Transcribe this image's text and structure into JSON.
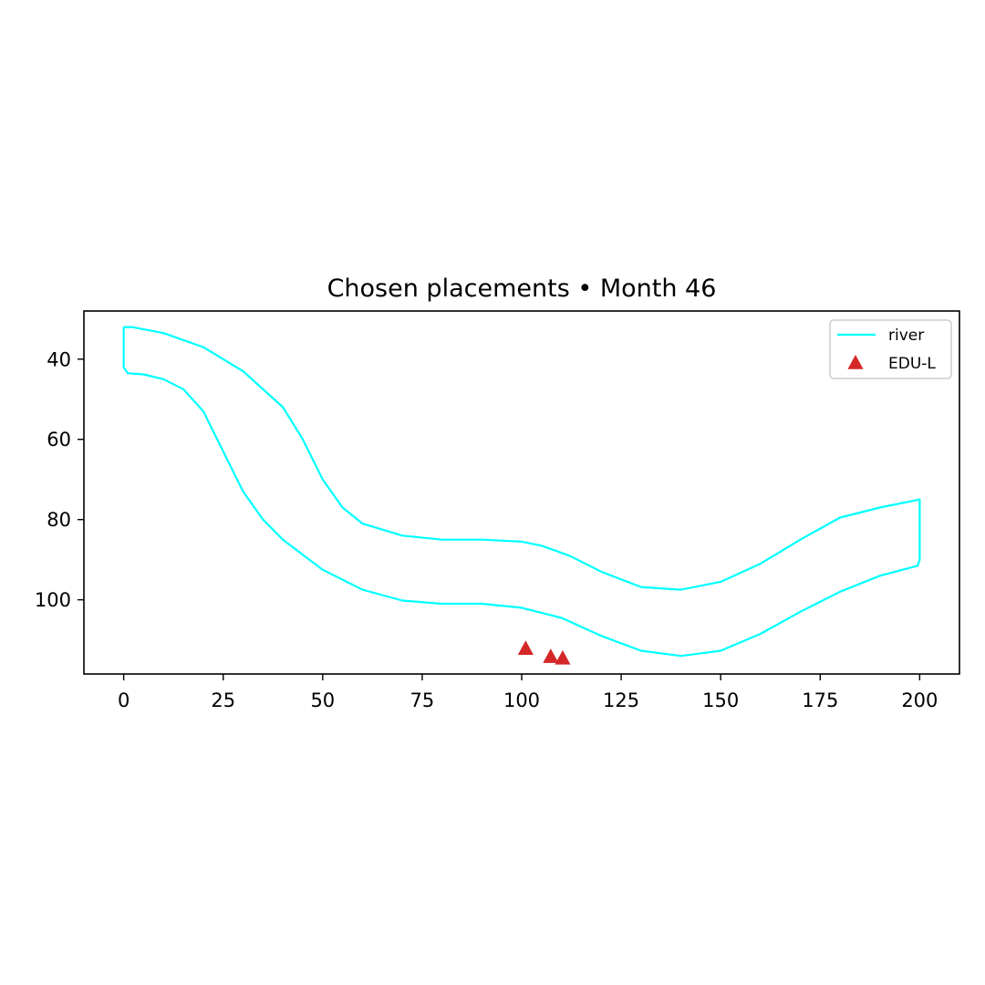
{
  "chart_data": {
    "type": "scatter",
    "title": "Chosen placements • Month 46",
    "xlabel": "",
    "ylabel": "",
    "xlim": [
      -10,
      210
    ],
    "ylim": [
      28,
      118.5
    ],
    "y_inverted": true,
    "x_ticks": [
      "0",
      "25",
      "50",
      "75",
      "100",
      "125",
      "150",
      "175",
      "200"
    ],
    "y_ticks": [
      "40",
      "60",
      "80",
      "100"
    ],
    "grid": false,
    "legend_position": "top-right",
    "series": [
      {
        "name": "river",
        "kind": "line",
        "color": "#00ffff",
        "x": [
          0,
          2,
          10,
          20,
          30,
          40,
          45,
          50,
          55,
          60,
          70,
          80,
          90,
          100,
          105,
          112,
          120,
          130,
          140,
          150,
          160,
          170,
          180,
          190,
          200,
          200,
          199.5,
          190,
          180,
          170,
          160,
          150,
          140,
          130,
          120,
          110,
          100,
          90,
          80,
          70,
          60,
          50,
          40,
          35,
          30,
          25,
          20,
          15,
          10,
          5,
          1,
          0,
          0
        ],
        "y": [
          32,
          32,
          33.5,
          37,
          43,
          52,
          60,
          70,
          77,
          81,
          84,
          85,
          85,
          85.5,
          86.5,
          89,
          93,
          96.8,
          97.5,
          95.5,
          91,
          85,
          79.5,
          77,
          75,
          90,
          91.5,
          94,
          98,
          103,
          108.5,
          112.7,
          114,
          112.7,
          109,
          104.5,
          102,
          101,
          101,
          100.2,
          97.5,
          92.5,
          85,
          80,
          73,
          63,
          53,
          47.5,
          45,
          43.8,
          43.5,
          42,
          32
        ]
      },
      {
        "name": "EDU-L",
        "kind": "marker",
        "marker": "triangle",
        "color": "#d62728",
        "x": [
          101,
          107.3,
          110.3
        ],
        "y": [
          112.2,
          114.2,
          114.6
        ]
      }
    ]
  }
}
